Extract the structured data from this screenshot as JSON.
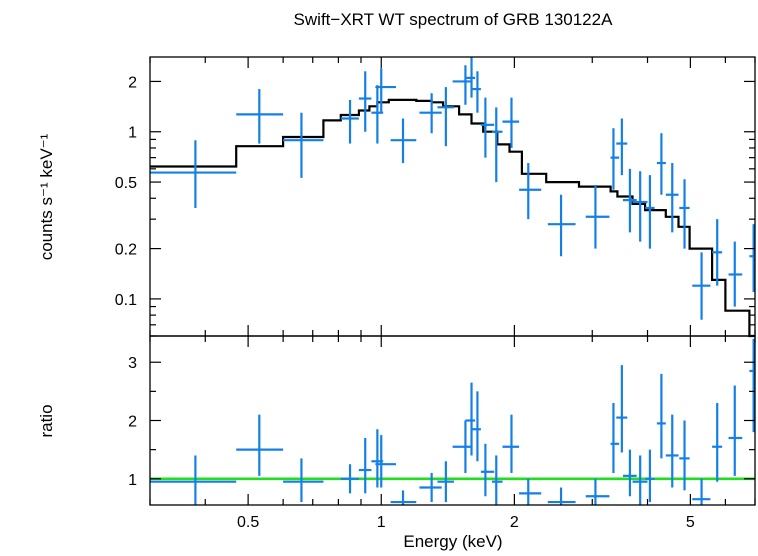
{
  "chart_data": {
    "type": "scatter",
    "title": "Swift−XRT WT spectrum of GRB 130122A",
    "xlabel": "Energy (keV)",
    "x_scale": "log",
    "xlim": [
      0.3,
      7.0
    ],
    "x_ticks": [
      {
        "value": 0.5,
        "label": "0.5"
      },
      {
        "value": 1,
        "label": "1"
      },
      {
        "value": 2,
        "label": "2"
      },
      {
        "value": 5,
        "label": "5"
      }
    ],
    "panels": [
      {
        "ylabel": "counts s⁻¹ keV⁻¹",
        "y_scale": "log",
        "ylim": [
          0.06,
          2.8
        ],
        "y_ticks": [
          {
            "value": 0.1,
            "label": "0.1"
          },
          {
            "value": 0.2,
            "label": "0.2"
          },
          {
            "value": 0.5,
            "label": "0.5"
          },
          {
            "value": 1,
            "label": "1"
          },
          {
            "value": 2,
            "label": "2"
          }
        ],
        "data": [
          {
            "x": 0.38,
            "xlo": 0.3,
            "xhi": 0.47,
            "y": 0.57,
            "ylo": 0.35,
            "yhi": 0.89
          },
          {
            "x": 0.53,
            "xlo": 0.47,
            "xhi": 0.6,
            "y": 1.27,
            "ylo": 0.85,
            "yhi": 1.8
          },
          {
            "x": 0.66,
            "xlo": 0.6,
            "xhi": 0.74,
            "y": 0.89,
            "ylo": 0.53,
            "yhi": 1.3
          },
          {
            "x": 0.85,
            "xlo": 0.81,
            "xhi": 0.89,
            "y": 1.2,
            "ylo": 0.85,
            "yhi": 1.55
          },
          {
            "x": 0.92,
            "xlo": 0.89,
            "xhi": 0.95,
            "y": 1.58,
            "ylo": 1.0,
            "yhi": 2.3
          },
          {
            "x": 0.98,
            "xlo": 0.95,
            "xhi": 1.01,
            "y": 1.3,
            "ylo": 0.85,
            "yhi": 1.9
          },
          {
            "x": 1.0,
            "xlo": 0.97,
            "xhi": 1.08,
            "y": 1.85,
            "ylo": 1.3,
            "yhi": 2.4
          },
          {
            "x": 1.12,
            "xlo": 1.05,
            "xhi": 1.2,
            "y": 0.89,
            "ylo": 0.65,
            "yhi": 1.2
          },
          {
            "x": 1.3,
            "xlo": 1.22,
            "xhi": 1.37,
            "y": 1.3,
            "ylo": 0.98,
            "yhi": 1.7
          },
          {
            "x": 1.4,
            "xlo": 1.34,
            "xhi": 1.46,
            "y": 1.4,
            "ylo": 0.82,
            "yhi": 1.85
          },
          {
            "x": 1.55,
            "xlo": 1.45,
            "xhi": 1.6,
            "y": 2.0,
            "ylo": 1.45,
            "yhi": 2.5
          },
          {
            "x": 1.6,
            "xlo": 1.55,
            "xhi": 1.63,
            "y": 2.1,
            "ylo": 1.6,
            "yhi": 2.8
          },
          {
            "x": 1.65,
            "xlo": 1.6,
            "xhi": 1.68,
            "y": 1.8,
            "ylo": 1.3,
            "yhi": 2.3
          },
          {
            "x": 1.72,
            "xlo": 1.68,
            "xhi": 1.8,
            "y": 1.1,
            "ylo": 0.7,
            "yhi": 1.6
          },
          {
            "x": 1.82,
            "xlo": 1.78,
            "xhi": 1.88,
            "y": 1.0,
            "ylo": 0.5,
            "yhi": 1.4
          },
          {
            "x": 1.97,
            "xlo": 1.88,
            "xhi": 2.05,
            "y": 1.15,
            "ylo": 0.8,
            "yhi": 1.6
          },
          {
            "x": 2.15,
            "xlo": 2.05,
            "xhi": 2.3,
            "y": 0.45,
            "ylo": 0.3,
            "yhi": 0.65
          },
          {
            "x": 2.55,
            "xlo": 2.38,
            "xhi": 2.75,
            "y": 0.28,
            "ylo": 0.18,
            "yhi": 0.42
          },
          {
            "x": 3.05,
            "xlo": 2.9,
            "xhi": 3.28,
            "y": 0.31,
            "ylo": 0.2,
            "yhi": 0.48
          },
          {
            "x": 3.35,
            "xlo": 3.3,
            "xhi": 3.45,
            "y": 0.7,
            "ylo": 0.45,
            "yhi": 1.05
          },
          {
            "x": 3.5,
            "xlo": 3.4,
            "xhi": 3.6,
            "y": 0.85,
            "ylo": 0.55,
            "yhi": 1.2
          },
          {
            "x": 3.65,
            "xlo": 3.52,
            "xhi": 3.78,
            "y": 0.39,
            "ylo": 0.25,
            "yhi": 0.6
          },
          {
            "x": 3.85,
            "xlo": 3.7,
            "xhi": 4.0,
            "y": 0.38,
            "ylo": 0.22,
            "yhi": 0.58
          },
          {
            "x": 4.05,
            "xlo": 3.95,
            "xhi": 4.15,
            "y": 0.35,
            "ylo": 0.2,
            "yhi": 0.55
          },
          {
            "x": 4.3,
            "xlo": 4.2,
            "xhi": 4.4,
            "y": 0.65,
            "ylo": 0.42,
            "yhi": 0.98
          },
          {
            "x": 4.55,
            "xlo": 4.4,
            "xhi": 4.7,
            "y": 0.42,
            "ylo": 0.25,
            "yhi": 0.65
          },
          {
            "x": 4.85,
            "xlo": 4.72,
            "xhi": 4.98,
            "y": 0.35,
            "ylo": 0.2,
            "yhi": 0.52
          },
          {
            "x": 5.3,
            "xlo": 5.05,
            "xhi": 5.55,
            "y": 0.12,
            "ylo": 0.075,
            "yhi": 0.19
          },
          {
            "x": 5.75,
            "xlo": 5.6,
            "xhi": 5.9,
            "y": 0.19,
            "ylo": 0.12,
            "yhi": 0.3
          },
          {
            "x": 6.3,
            "xlo": 6.1,
            "xhi": 6.55,
            "y": 0.14,
            "ylo": 0.09,
            "yhi": 0.22
          },
          {
            "x": 6.95,
            "xlo": 6.8,
            "xhi": 7.0,
            "y": 0.18,
            "ylo": 0.11,
            "yhi": 0.28
          }
        ],
        "model_steps": [
          {
            "x0": 0.3,
            "x1": 0.47,
            "y": 0.62
          },
          {
            "x0": 0.47,
            "x1": 0.6,
            "y": 0.82
          },
          {
            "x0": 0.6,
            "x1": 0.74,
            "y": 0.93
          },
          {
            "x0": 0.74,
            "x1": 0.81,
            "y": 1.17
          },
          {
            "x0": 0.81,
            "x1": 0.89,
            "y": 1.26
          },
          {
            "x0": 0.89,
            "x1": 0.94,
            "y": 1.34
          },
          {
            "x0": 0.94,
            "x1": 0.98,
            "y": 1.42
          },
          {
            "x0": 0.98,
            "x1": 1.04,
            "y": 1.5
          },
          {
            "x0": 1.04,
            "x1": 1.2,
            "y": 1.55
          },
          {
            "x0": 1.2,
            "x1": 1.3,
            "y": 1.53
          },
          {
            "x0": 1.3,
            "x1": 1.38,
            "y": 1.5
          },
          {
            "x0": 1.38,
            "x1": 1.5,
            "y": 1.42
          },
          {
            "x0": 1.5,
            "x1": 1.6,
            "y": 1.27
          },
          {
            "x0": 1.6,
            "x1": 1.7,
            "y": 1.12
          },
          {
            "x0": 1.7,
            "x1": 1.83,
            "y": 1.0
          },
          {
            "x0": 1.83,
            "x1": 1.95,
            "y": 0.84
          },
          {
            "x0": 1.95,
            "x1": 2.08,
            "y": 0.76
          },
          {
            "x0": 2.08,
            "x1": 2.36,
            "y": 0.56
          },
          {
            "x0": 2.36,
            "x1": 2.8,
            "y": 0.5
          },
          {
            "x0": 2.8,
            "x1": 3.3,
            "y": 0.47
          },
          {
            "x0": 3.3,
            "x1": 3.42,
            "y": 0.44
          },
          {
            "x0": 3.42,
            "x1": 3.7,
            "y": 0.41
          },
          {
            "x0": 3.7,
            "x1": 3.95,
            "y": 0.37
          },
          {
            "x0": 3.95,
            "x1": 4.4,
            "y": 0.34
          },
          {
            "x0": 4.4,
            "x1": 4.7,
            "y": 0.31
          },
          {
            "x0": 4.7,
            "x1": 4.98,
            "y": 0.27
          },
          {
            "x0": 4.98,
            "x1": 5.6,
            "y": 0.2
          },
          {
            "x0": 5.6,
            "x1": 6.0,
            "y": 0.13
          },
          {
            "x0": 6.0,
            "x1": 6.8,
            "y": 0.085
          },
          {
            "x0": 6.8,
            "x1": 7.0,
            "y": 0.06
          }
        ],
        "data_color": "#1480e6",
        "model_color": "#000000"
      },
      {
        "ylabel": "ratio",
        "y_scale": "linear",
        "ylim": [
          0.55,
          3.45
        ],
        "y_ticks": [
          {
            "value": 1,
            "label": "1"
          },
          {
            "value": 2,
            "label": "2"
          },
          {
            "value": 3,
            "label": "3"
          }
        ],
        "data": [
          {
            "x": 0.38,
            "xlo": 0.3,
            "xhi": 0.47,
            "y": 0.95,
            "ylo": 0.55,
            "yhi": 1.4
          },
          {
            "x": 0.53,
            "xlo": 0.47,
            "xhi": 0.6,
            "y": 1.5,
            "ylo": 1.05,
            "yhi": 2.1
          },
          {
            "x": 0.66,
            "xlo": 0.6,
            "xhi": 0.74,
            "y": 0.95,
            "ylo": 0.6,
            "yhi": 1.35
          },
          {
            "x": 0.85,
            "xlo": 0.81,
            "xhi": 0.89,
            "y": 1.0,
            "ylo": 0.75,
            "yhi": 1.25
          },
          {
            "x": 0.92,
            "xlo": 0.89,
            "xhi": 0.95,
            "y": 1.15,
            "ylo": 0.75,
            "yhi": 1.7
          },
          {
            "x": 0.98,
            "xlo": 0.95,
            "xhi": 1.01,
            "y": 1.3,
            "ylo": 0.85,
            "yhi": 1.85
          },
          {
            "x": 1.0,
            "xlo": 0.97,
            "xhi": 1.08,
            "y": 1.25,
            "ylo": 0.85,
            "yhi": 1.75
          },
          {
            "x": 1.12,
            "xlo": 1.05,
            "xhi": 1.2,
            "y": 0.6,
            "ylo": 0.55,
            "yhi": 0.8
          },
          {
            "x": 1.3,
            "xlo": 1.22,
            "xhi": 1.37,
            "y": 0.85,
            "ylo": 0.6,
            "yhi": 1.1
          },
          {
            "x": 1.4,
            "xlo": 1.34,
            "xhi": 1.46,
            "y": 0.95,
            "ylo": 0.6,
            "yhi": 1.3
          },
          {
            "x": 1.55,
            "xlo": 1.45,
            "xhi": 1.6,
            "y": 1.55,
            "ylo": 1.1,
            "yhi": 2.0
          },
          {
            "x": 1.6,
            "xlo": 1.55,
            "xhi": 1.63,
            "y": 2.0,
            "ylo": 1.4,
            "yhi": 2.65
          },
          {
            "x": 1.65,
            "xlo": 1.6,
            "xhi": 1.68,
            "y": 1.85,
            "ylo": 1.3,
            "yhi": 2.5
          },
          {
            "x": 1.72,
            "xlo": 1.68,
            "xhi": 1.8,
            "y": 1.12,
            "ylo": 0.7,
            "yhi": 1.6
          },
          {
            "x": 1.82,
            "xlo": 1.78,
            "xhi": 1.88,
            "y": 0.95,
            "ylo": 0.55,
            "yhi": 1.4
          },
          {
            "x": 1.97,
            "xlo": 1.88,
            "xhi": 2.05,
            "y": 1.55,
            "ylo": 1.1,
            "yhi": 2.1
          },
          {
            "x": 2.15,
            "xlo": 2.05,
            "xhi": 2.3,
            "y": 0.75,
            "ylo": 0.55,
            "yhi": 1.0
          },
          {
            "x": 2.55,
            "xlo": 2.38,
            "xhi": 2.75,
            "y": 0.6,
            "ylo": 0.55,
            "yhi": 0.85
          },
          {
            "x": 3.05,
            "xlo": 2.9,
            "xhi": 3.28,
            "y": 0.7,
            "ylo": 0.55,
            "yhi": 1.0
          },
          {
            "x": 3.35,
            "xlo": 3.3,
            "xhi": 3.45,
            "y": 1.6,
            "ylo": 1.1,
            "yhi": 2.3
          },
          {
            "x": 3.5,
            "xlo": 3.4,
            "xhi": 3.6,
            "y": 2.05,
            "ylo": 1.45,
            "yhi": 2.95
          },
          {
            "x": 3.65,
            "xlo": 3.52,
            "xhi": 3.78,
            "y": 1.05,
            "ylo": 0.7,
            "yhi": 1.5
          },
          {
            "x": 3.85,
            "xlo": 3.7,
            "xhi": 4.0,
            "y": 0.95,
            "ylo": 0.55,
            "yhi": 1.4
          },
          {
            "x": 4.05,
            "xlo": 3.95,
            "xhi": 4.15,
            "y": 1.0,
            "ylo": 0.6,
            "yhi": 1.5
          },
          {
            "x": 4.3,
            "xlo": 4.2,
            "xhi": 4.4,
            "y": 1.95,
            "ylo": 1.35,
            "yhi": 2.8
          },
          {
            "x": 4.55,
            "xlo": 4.4,
            "xhi": 4.7,
            "y": 1.4,
            "ylo": 0.85,
            "yhi": 2.1
          },
          {
            "x": 4.85,
            "xlo": 4.72,
            "xhi": 4.98,
            "y": 1.35,
            "ylo": 0.8,
            "yhi": 2.0
          },
          {
            "x": 5.3,
            "xlo": 5.05,
            "xhi": 5.55,
            "y": 0.65,
            "ylo": 0.55,
            "yhi": 1.0
          },
          {
            "x": 5.75,
            "xlo": 5.6,
            "xhi": 5.9,
            "y": 1.55,
            "ylo": 0.95,
            "yhi": 2.3
          },
          {
            "x": 6.3,
            "xlo": 6.1,
            "xhi": 6.55,
            "y": 1.7,
            "ylo": 1.05,
            "yhi": 2.6
          },
          {
            "x": 6.95,
            "xlo": 6.8,
            "xhi": 7.0,
            "y": 2.85,
            "ylo": 1.8,
            "yhi": 3.4
          }
        ],
        "reference_line": {
          "y": 1.0,
          "color": "#22dd22"
        },
        "data_color": "#1480e6"
      }
    ]
  }
}
